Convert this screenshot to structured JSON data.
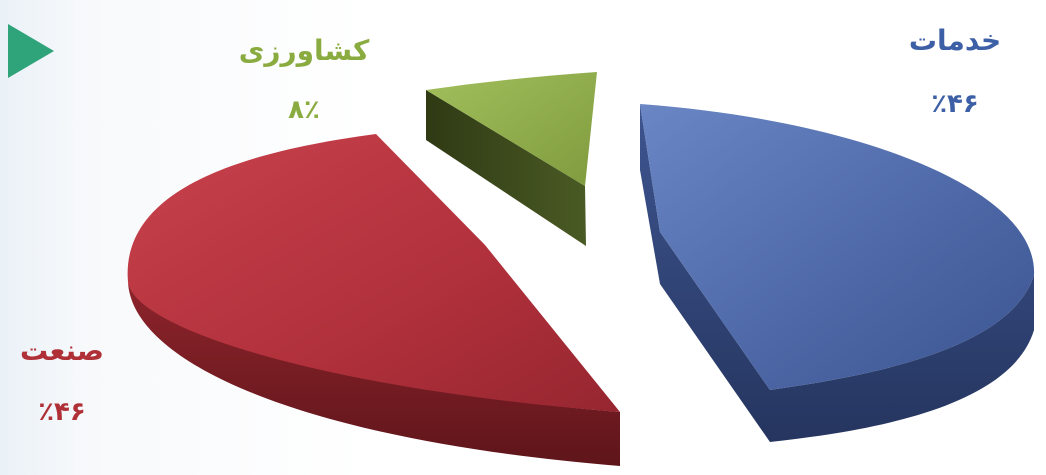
{
  "chart_data": {
    "type": "pie",
    "slices": [
      {
        "label": "خدمات",
        "value_text": "٪۴۶",
        "value": 46,
        "color": "#4f6aa8",
        "side_color": "#2f4274"
      },
      {
        "label": "کشاورزی",
        "value_text": "۸٪",
        "value": 8,
        "color": "#8fac4a",
        "side_color": "#3d4a1e"
      },
      {
        "label": "صنعت",
        "value_text": "٪۴۶",
        "value": 46,
        "color": "#b3323d",
        "side_color": "#6f1c22"
      }
    ]
  },
  "decor": {
    "play_arrow_color": "#2fa37a"
  }
}
